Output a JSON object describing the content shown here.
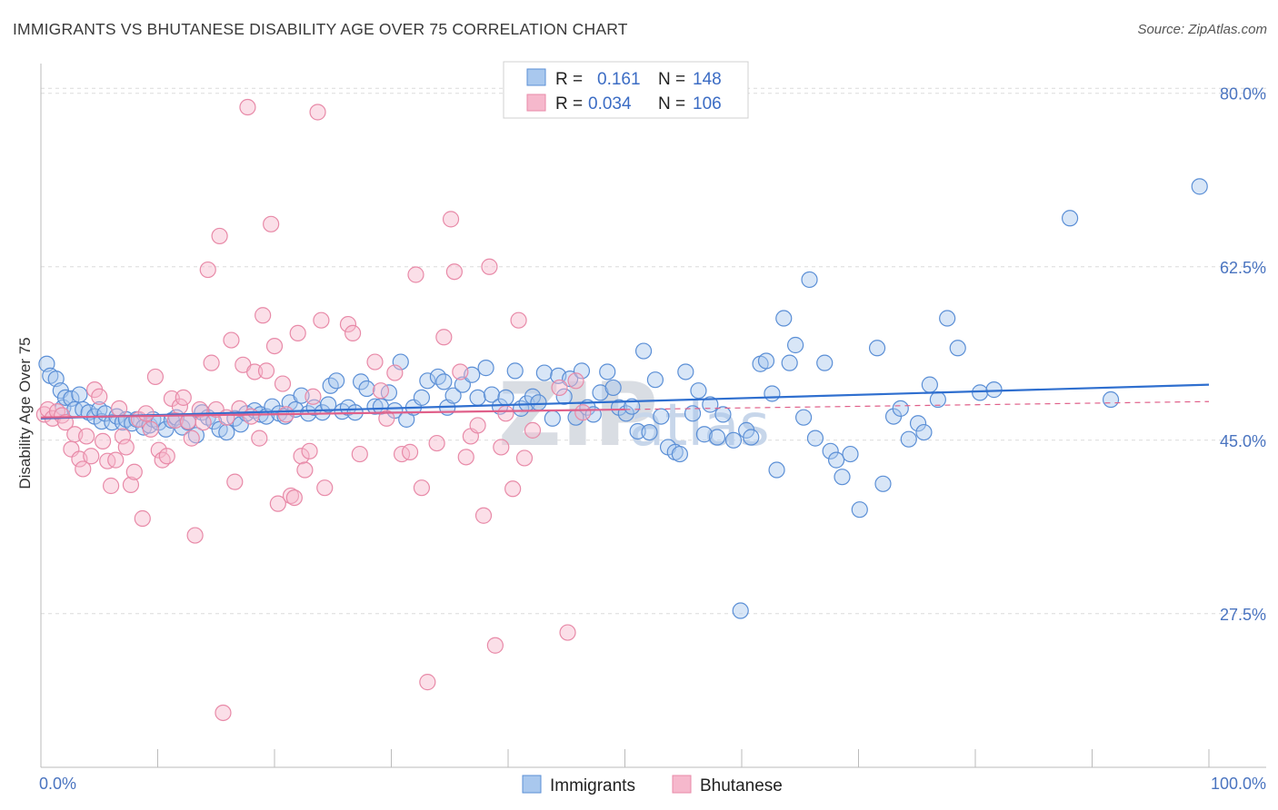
{
  "title": "IMMIGRANTS VS BHUTANESE DISABILITY AGE OVER 75 CORRELATION CHART",
  "source": "Source: ZipAtlas.com",
  "watermark": "ZIPatlas",
  "colors": {
    "blue_fill": "#a9c8ee",
    "blue_stroke": "#5b8fd6",
    "blue_line": "#2f6fcf",
    "pink_fill": "#f6b8cc",
    "pink_stroke": "#e88aa8",
    "pink_line": "#e0608a",
    "axis_label": "#4a74c0",
    "grid": "#dcdcdc"
  },
  "legend": {
    "rows": [
      {
        "r_label": "R =",
        "r_value": "0.161",
        "n_label": "N =",
        "n_value": "148"
      },
      {
        "r_label": "R =",
        "r_value": "0.034",
        "n_label": "N =",
        "n_value": "106"
      }
    ],
    "bottom": [
      "Immigrants",
      "Bhutanese"
    ]
  },
  "chart_data": {
    "type": "scatter",
    "xlabel": "",
    "ylabel": "Disability Age Over 75",
    "xlim": [
      0,
      100
    ],
    "ylim": [
      12,
      83
    ],
    "x_tick_labels": [
      "0.0%",
      "100.0%"
    ],
    "y_ticks": [
      27.5,
      45.0,
      62.5,
      80.0
    ],
    "y_tick_labels": [
      "27.5%",
      "45.0%",
      "62.5%",
      "80.0%"
    ],
    "grid": "horizontal dashed",
    "legend_position": "top-center",
    "series": [
      {
        "name": "Immigrants",
        "trend": {
          "x": [
            0,
            100
          ],
          "y": [
            47.2,
            50.6
          ]
        },
        "points": [
          [
            0.5,
            52.7
          ],
          [
            0.8,
            51.5
          ],
          [
            1.3,
            51.2
          ],
          [
            1.7,
            50.0
          ],
          [
            1.9,
            48.3
          ],
          [
            2.1,
            49.3
          ],
          [
            2.6,
            49.2
          ],
          [
            2.9,
            48.1
          ],
          [
            3.3,
            49.6
          ],
          [
            3.6,
            48.1
          ],
          [
            4.1,
            47.8
          ],
          [
            4.6,
            47.4
          ],
          [
            5.0,
            48.1
          ],
          [
            5.2,
            46.9
          ],
          [
            5.5,
            47.7
          ],
          [
            6.1,
            46.8
          ],
          [
            6.5,
            47.4
          ],
          [
            7.0,
            46.8
          ],
          [
            7.3,
            47.1
          ],
          [
            7.8,
            46.7
          ],
          [
            8.2,
            47.1
          ],
          [
            8.8,
            46.3
          ],
          [
            9.3,
            46.5
          ],
          [
            9.6,
            47.1
          ],
          [
            10.1,
            46.8
          ],
          [
            10.7,
            46.1
          ],
          [
            11.2,
            47.0
          ],
          [
            11.6,
            47.3
          ],
          [
            12.1,
            46.3
          ],
          [
            12.6,
            46.8
          ],
          [
            13.3,
            45.5
          ],
          [
            13.8,
            47.8
          ],
          [
            14.3,
            47.3
          ],
          [
            14.8,
            46.9
          ],
          [
            15.3,
            46.1
          ],
          [
            15.9,
            45.8
          ],
          [
            16.6,
            47.2
          ],
          [
            17.1,
            46.6
          ],
          [
            17.6,
            47.7
          ],
          [
            18.3,
            48.0
          ],
          [
            18.8,
            47.6
          ],
          [
            19.3,
            47.4
          ],
          [
            19.8,
            48.4
          ],
          [
            20.4,
            47.7
          ],
          [
            20.9,
            47.4
          ],
          [
            21.3,
            48.8
          ],
          [
            21.8,
            48.1
          ],
          [
            22.3,
            49.5
          ],
          [
            22.9,
            47.7
          ],
          [
            23.4,
            48.3
          ],
          [
            24.1,
            47.8
          ],
          [
            24.6,
            48.6
          ],
          [
            24.8,
            50.5
          ],
          [
            25.3,
            51.0
          ],
          [
            25.8,
            47.9
          ],
          [
            26.3,
            48.3
          ],
          [
            26.9,
            47.8
          ],
          [
            27.4,
            50.9
          ],
          [
            27.9,
            50.2
          ],
          [
            28.6,
            48.4
          ],
          [
            29.1,
            48.4
          ],
          [
            29.8,
            49.8
          ],
          [
            30.3,
            48.0
          ],
          [
            30.8,
            52.9
          ],
          [
            31.3,
            47.1
          ],
          [
            31.9,
            48.3
          ],
          [
            32.6,
            49.3
          ],
          [
            33.1,
            51.0
          ],
          [
            34.0,
            51.4
          ],
          [
            34.5,
            50.9
          ],
          [
            34.8,
            48.3
          ],
          [
            35.3,
            49.5
          ],
          [
            36.1,
            50.6
          ],
          [
            36.9,
            51.6
          ],
          [
            37.4,
            49.3
          ],
          [
            38.1,
            52.3
          ],
          [
            38.6,
            49.6
          ],
          [
            39.3,
            48.4
          ],
          [
            39.8,
            49.3
          ],
          [
            40.6,
            52.0
          ],
          [
            41.1,
            48.2
          ],
          [
            41.6,
            48.7
          ],
          [
            42.1,
            49.4
          ],
          [
            42.6,
            48.8
          ],
          [
            43.1,
            51.8
          ],
          [
            43.8,
            47.2
          ],
          [
            44.3,
            51.5
          ],
          [
            44.8,
            49.4
          ],
          [
            45.3,
            51.2
          ],
          [
            45.8,
            47.3
          ],
          [
            46.3,
            52.0
          ],
          [
            46.8,
            48.3
          ],
          [
            47.3,
            47.6
          ],
          [
            47.9,
            49.8
          ],
          [
            48.5,
            51.9
          ],
          [
            49.0,
            50.3
          ],
          [
            49.5,
            48.3
          ],
          [
            50.1,
            47.7
          ],
          [
            50.6,
            48.4
          ],
          [
            51.1,
            45.9
          ],
          [
            51.6,
            54.0
          ],
          [
            52.1,
            45.8
          ],
          [
            52.6,
            51.1
          ],
          [
            53.1,
            47.4
          ],
          [
            53.7,
            44.3
          ],
          [
            54.3,
            43.8
          ],
          [
            54.7,
            43.6
          ],
          [
            55.2,
            51.9
          ],
          [
            55.8,
            47.7
          ],
          [
            56.3,
            50.0
          ],
          [
            56.8,
            45.6
          ],
          [
            57.3,
            48.6
          ],
          [
            57.9,
            45.3
          ],
          [
            58.4,
            47.6
          ],
          [
            59.3,
            45.0
          ],
          [
            59.9,
            27.8
          ],
          [
            60.4,
            46.0
          ],
          [
            60.8,
            45.3
          ],
          [
            61.6,
            52.7
          ],
          [
            62.1,
            53.0
          ],
          [
            62.6,
            49.7
          ],
          [
            63.0,
            42.0
          ],
          [
            63.6,
            57.3
          ],
          [
            64.1,
            52.8
          ],
          [
            64.6,
            54.6
          ],
          [
            65.3,
            47.3
          ],
          [
            65.8,
            61.2
          ],
          [
            66.3,
            45.2
          ],
          [
            67.1,
            52.8
          ],
          [
            67.6,
            43.9
          ],
          [
            68.1,
            43.0
          ],
          [
            68.6,
            41.3
          ],
          [
            69.3,
            43.6
          ],
          [
            70.1,
            38.0
          ],
          [
            71.6,
            54.3
          ],
          [
            72.1,
            40.6
          ],
          [
            73.0,
            47.4
          ],
          [
            73.6,
            48.2
          ],
          [
            74.3,
            45.1
          ],
          [
            75.1,
            46.7
          ],
          [
            75.6,
            45.8
          ],
          [
            76.1,
            50.6
          ],
          [
            76.8,
            49.1
          ],
          [
            77.6,
            57.3
          ],
          [
            78.5,
            54.3
          ],
          [
            80.4,
            49.8
          ],
          [
            81.6,
            50.1
          ],
          [
            88.1,
            67.4
          ],
          [
            91.6,
            49.1
          ],
          [
            99.2,
            70.6
          ]
        ]
      },
      {
        "name": "Bhutanese",
        "trend": {
          "x": [
            0,
            50
          ],
          "y": [
            47.3,
            48.1
          ]
        },
        "trend_dashed": {
          "x": [
            50,
            100
          ],
          "y": [
            48.1,
            48.9
          ]
        },
        "points": [
          [
            0.3,
            47.6
          ],
          [
            0.6,
            48.1
          ],
          [
            1.0,
            47.2
          ],
          [
            1.4,
            47.9
          ],
          [
            1.8,
            47.5
          ],
          [
            2.1,
            46.8
          ],
          [
            2.6,
            44.1
          ],
          [
            2.9,
            45.6
          ],
          [
            3.3,
            43.1
          ],
          [
            3.6,
            42.1
          ],
          [
            3.9,
            45.4
          ],
          [
            4.3,
            43.4
          ],
          [
            4.6,
            50.1
          ],
          [
            5.0,
            49.4
          ],
          [
            5.3,
            44.9
          ],
          [
            5.7,
            42.9
          ],
          [
            6.0,
            40.4
          ],
          [
            6.4,
            43.0
          ],
          [
            6.7,
            48.2
          ],
          [
            7.0,
            45.4
          ],
          [
            7.3,
            44.3
          ],
          [
            7.7,
            40.5
          ],
          [
            8.0,
            41.8
          ],
          [
            8.4,
            47.1
          ],
          [
            8.7,
            37.1
          ],
          [
            9.0,
            47.7
          ],
          [
            9.4,
            46.1
          ],
          [
            9.8,
            51.4
          ],
          [
            10.1,
            44.0
          ],
          [
            10.4,
            43.0
          ],
          [
            10.8,
            43.4
          ],
          [
            11.2,
            49.2
          ],
          [
            11.5,
            47.0
          ],
          [
            11.9,
            48.4
          ],
          [
            12.2,
            49.3
          ],
          [
            12.6,
            46.9
          ],
          [
            12.9,
            45.2
          ],
          [
            13.2,
            35.4
          ],
          [
            13.6,
            48.1
          ],
          [
            13.9,
            46.8
          ],
          [
            14.3,
            62.2
          ],
          [
            14.6,
            52.8
          ],
          [
            15.0,
            48.1
          ],
          [
            15.3,
            65.6
          ],
          [
            15.6,
            17.5
          ],
          [
            15.9,
            47.3
          ],
          [
            16.3,
            55.1
          ],
          [
            16.6,
            40.8
          ],
          [
            17.0,
            48.2
          ],
          [
            17.3,
            52.6
          ],
          [
            17.7,
            78.6
          ],
          [
            18.0,
            47.4
          ],
          [
            18.3,
            51.9
          ],
          [
            18.7,
            45.2
          ],
          [
            19.0,
            57.6
          ],
          [
            19.3,
            52.0
          ],
          [
            19.7,
            66.8
          ],
          [
            20.0,
            54.5
          ],
          [
            20.3,
            38.6
          ],
          [
            20.7,
            50.7
          ],
          [
            21.0,
            47.6
          ],
          [
            21.4,
            39.4
          ],
          [
            21.7,
            39.2
          ],
          [
            22.0,
            55.8
          ],
          [
            22.3,
            43.4
          ],
          [
            22.6,
            42.0
          ],
          [
            23.0,
            43.9
          ],
          [
            23.3,
            49.4
          ],
          [
            23.7,
            78.1
          ],
          [
            24.0,
            57.1
          ],
          [
            24.3,
            40.2
          ],
          [
            26.3,
            56.7
          ],
          [
            26.7,
            55.8
          ],
          [
            27.3,
            43.6
          ],
          [
            28.6,
            52.9
          ],
          [
            29.1,
            50.0
          ],
          [
            29.6,
            47.2
          ],
          [
            30.3,
            51.8
          ],
          [
            30.9,
            43.6
          ],
          [
            31.6,
            43.8
          ],
          [
            32.1,
            61.7
          ],
          [
            32.6,
            40.2
          ],
          [
            33.1,
            20.6
          ],
          [
            33.9,
            44.7
          ],
          [
            34.5,
            55.4
          ],
          [
            35.1,
            67.3
          ],
          [
            35.4,
            62.0
          ],
          [
            35.9,
            51.9
          ],
          [
            36.4,
            43.3
          ],
          [
            36.8,
            45.4
          ],
          [
            37.4,
            46.5
          ],
          [
            37.9,
            37.4
          ],
          [
            38.4,
            62.5
          ],
          [
            38.9,
            24.3
          ],
          [
            39.4,
            44.3
          ],
          [
            39.8,
            47.7
          ],
          [
            40.4,
            40.1
          ],
          [
            40.9,
            57.1
          ],
          [
            41.4,
            43.2
          ],
          [
            42.1,
            46.0
          ],
          [
            44.4,
            50.3
          ],
          [
            45.1,
            25.6
          ],
          [
            45.8,
            51.0
          ],
          [
            46.4,
            47.8
          ]
        ]
      }
    ]
  }
}
